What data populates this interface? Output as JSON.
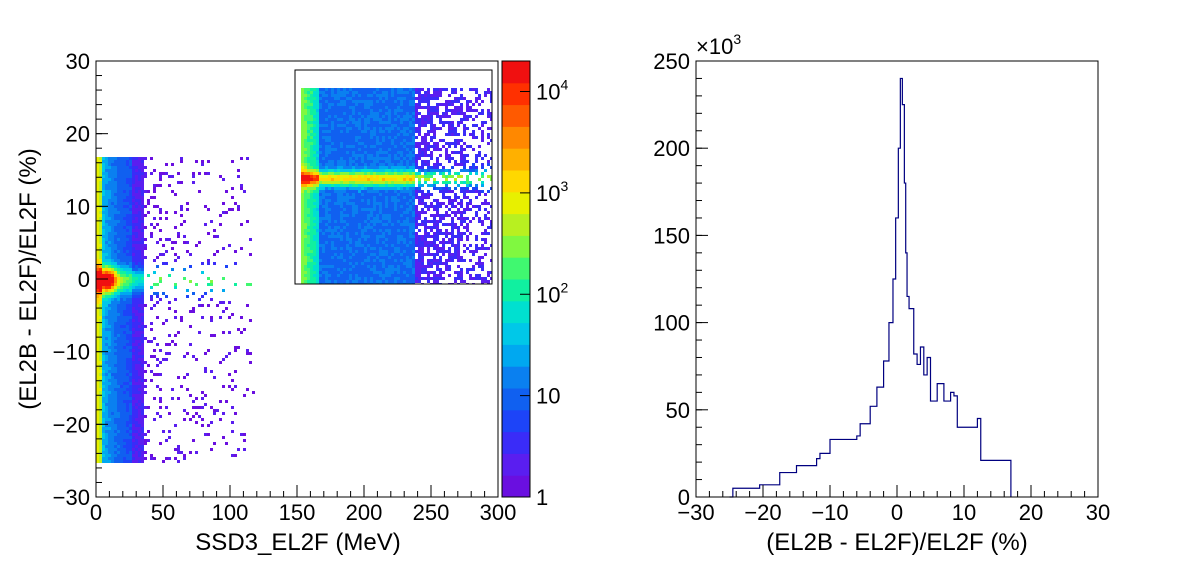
{
  "chart_data": [
    {
      "type": "heatmap",
      "xlabel": "SSD3_EL2F (MeV)",
      "ylabel": "(EL2B - EL2F)/EL2F (%)",
      "xlim": [
        0,
        300
      ],
      "ylim": [
        -30,
        30
      ],
      "x_ticks": [
        0,
        50,
        100,
        150,
        200,
        250,
        300
      ],
      "y_ticks": [
        -30,
        -20,
        -10,
        0,
        10,
        20,
        30
      ],
      "colorbar": {
        "scale": "log",
        "range": [
          1,
          20000
        ],
        "tick_labels": [
          "1",
          "10",
          "10^2",
          "10^3",
          "10^4"
        ],
        "tick_values": [
          1,
          10,
          100,
          1000,
          10000
        ]
      },
      "features": {
        "vertical_band_x": [
          0,
          35
        ],
        "vertical_band_y": [
          -25,
          17
        ],
        "horizontal_ridge_y": 0,
        "horizontal_ridge_x": [
          0,
          118
        ],
        "peak_near": [
          8,
          0
        ],
        "sparse_region_x": [
          35,
          118
        ],
        "sparse_region_y": [
          -25,
          17
        ]
      },
      "inset": {
        "description_visible": "zoomed view of ridge",
        "peak_row_fraction": 0.5
      }
    },
    {
      "type": "line",
      "xlabel": "(EL2B - EL2F)/EL2F (%)",
      "ylabel": "",
      "y_multiplier": "×10^3",
      "xlim": [
        -30,
        30
      ],
      "ylim": [
        0,
        250
      ],
      "x_ticks": [
        -30,
        -20,
        -10,
        0,
        10,
        20,
        30
      ],
      "y_ticks": [
        0,
        50,
        100,
        150,
        200,
        250
      ],
      "line_color": "#000080",
      "x": [
        -25,
        -24.5,
        -21,
        -20.5,
        -18,
        -17.5,
        -15,
        -12,
        -11.5,
        -10,
        -6,
        -5.5,
        -4,
        -3,
        -2,
        -1.2,
        -0.6,
        -0.2,
        0.2,
        0.5,
        0.8,
        1.1,
        1.3,
        1.5,
        1.8,
        2.5,
        3,
        3.5,
        4,
        4.5,
        5,
        6,
        7,
        8,
        8.5,
        9,
        12,
        12.5,
        16.5,
        17
      ],
      "y": [
        0,
        5,
        5,
        7,
        7,
        14,
        18,
        22,
        25,
        33,
        35,
        42,
        52,
        63,
        78,
        100,
        125,
        160,
        200,
        240,
        225,
        180,
        140,
        115,
        108,
        82,
        76,
        86,
        70,
        80,
        55,
        65,
        55,
        60,
        58,
        40,
        45,
        21,
        21,
        0
      ]
    }
  ]
}
